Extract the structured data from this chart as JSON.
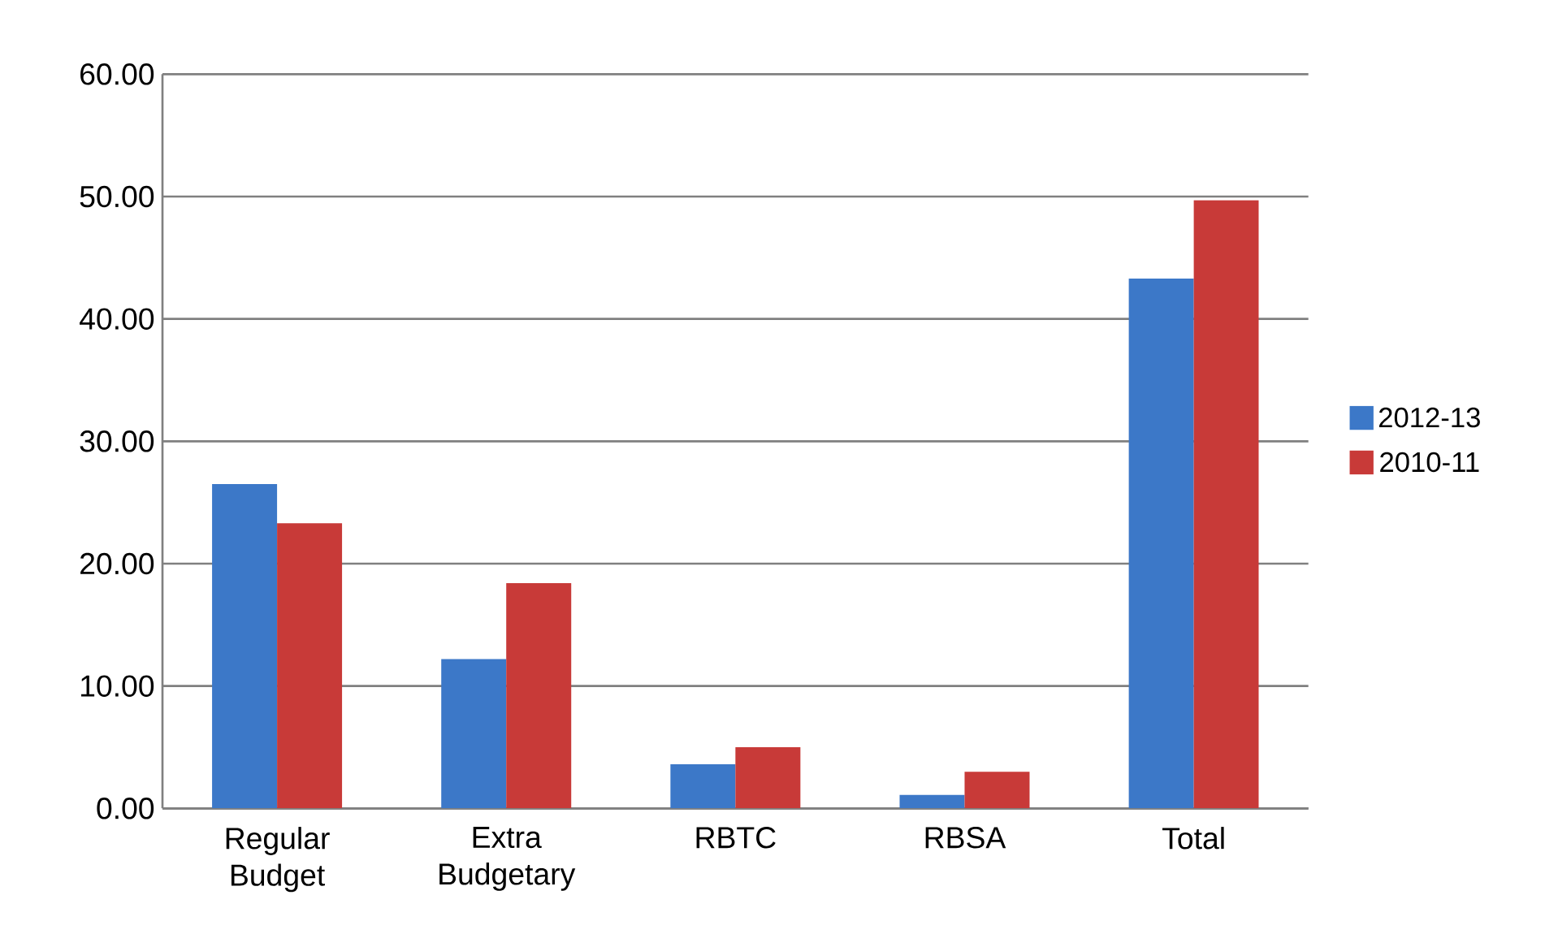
{
  "chart_data": {
    "type": "bar",
    "categories": [
      "Regular Budget",
      "Extra Budgetary",
      "RBTC",
      "RBSA",
      "Total"
    ],
    "series": [
      {
        "name": "2012-13",
        "color": "#3c78c8",
        "values": [
          26.5,
          12.2,
          3.6,
          1.1,
          43.3
        ]
      },
      {
        "name": "2010-11",
        "color": "#c83a38",
        "values": [
          23.3,
          18.4,
          5.0,
          3.0,
          49.7
        ]
      }
    ],
    "ylim": [
      0,
      60
    ],
    "yticks": [
      {
        "value": 0,
        "label": "0.00"
      },
      {
        "value": 10,
        "label": "10.00"
      },
      {
        "value": 20,
        "label": "20.00"
      },
      {
        "value": 30,
        "label": "30.00"
      },
      {
        "value": 40,
        "label": "40.00"
      },
      {
        "value": 50,
        "label": "50.00"
      },
      {
        "value": 60,
        "label": "60.00"
      }
    ],
    "grid": "y",
    "legend": "right"
  }
}
